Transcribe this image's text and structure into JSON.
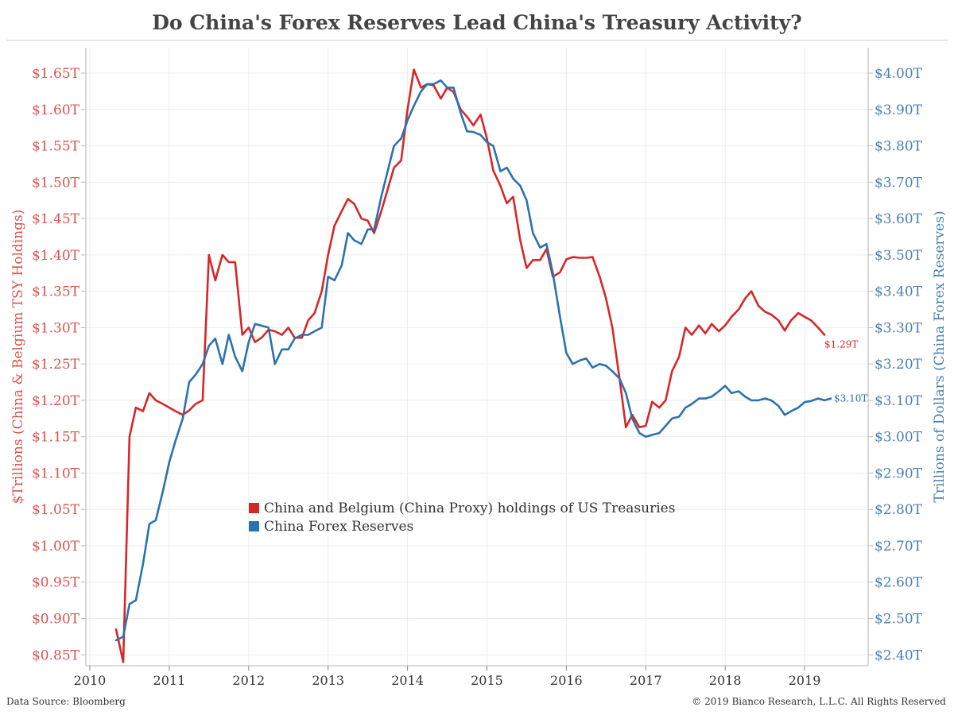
{
  "title": "Do China's Forex Reserves Lead China's Treasury Activity?",
  "footer": {
    "source": "Data Source: Bloomberg",
    "copyright": "© 2019 Bianco Research, L.L.C. All Rights Reserved"
  },
  "colors": {
    "left_series": "#d62728",
    "right_series": "#2c72ad",
    "left_axis_text": "#d9534f",
    "right_axis_text": "#4a7fb0",
    "grid": "#ececec"
  },
  "chart_data": {
    "type": "line",
    "title": "Do China's Forex Reserves Lead China's Treasury Activity?",
    "grid": true,
    "legend_position": "center-left",
    "x_axis": {
      "ticks": [
        "2010",
        "2011",
        "2012",
        "2013",
        "2014",
        "2015",
        "2016",
        "2017",
        "2018",
        "2019"
      ],
      "range": [
        2009.95,
        2019.8
      ]
    },
    "y_left": {
      "label": "$Trillions (China & Belgium TSY Holdings)",
      "range": [
        0.835,
        1.685
      ],
      "ticks": [
        0.85,
        0.9,
        0.95,
        1.0,
        1.05,
        1.1,
        1.15,
        1.2,
        1.25,
        1.3,
        1.35,
        1.4,
        1.45,
        1.5,
        1.55,
        1.6,
        1.65
      ],
      "tick_labels": [
        "$0.85T",
        "$0.90T",
        "$0.95T",
        "$1.00T",
        "$1.05T",
        "$1.10T",
        "$1.15T",
        "$1.20T",
        "$1.25T",
        "$1.30T",
        "$1.35T",
        "$1.40T",
        "$1.45T",
        "$1.50T",
        "$1.55T",
        "$1.60T",
        "$1.65T"
      ]
    },
    "y_right": {
      "label": "Trillions of Dollars (China Forex Reserves)",
      "range": [
        2.37,
        4.07
      ],
      "ticks": [
        2.4,
        2.5,
        2.6,
        2.7,
        2.8,
        2.9,
        3.0,
        3.1,
        3.2,
        3.3,
        3.4,
        3.5,
        3.6,
        3.7,
        3.8,
        3.9,
        4.0
      ],
      "tick_labels": [
        "$2.40T",
        "$2.50T",
        "$2.60T",
        "$2.70T",
        "$2.80T",
        "$2.90T",
        "$3.00T",
        "$3.10T",
        "$3.20T",
        "$3.30T",
        "$3.40T",
        "$3.50T",
        "$3.60T",
        "$3.70T",
        "$3.80T",
        "$3.90T",
        "$4.00T"
      ]
    },
    "series": [
      {
        "name": "China and Belgium (China Proxy) holdings of US Treasuries",
        "axis": "left",
        "end_label": "$1.29T",
        "x": [
          2010.33,
          2010.42,
          2010.5,
          2010.58,
          2010.67,
          2010.75,
          2010.83,
          2010.92,
          2011.0,
          2011.08,
          2011.17,
          2011.25,
          2011.33,
          2011.42,
          2011.5,
          2011.58,
          2011.67,
          2011.75,
          2011.83,
          2011.92,
          2012.0,
          2012.08,
          2012.17,
          2012.25,
          2012.33,
          2012.42,
          2012.5,
          2012.58,
          2012.67,
          2012.75,
          2012.83,
          2012.92,
          2013.0,
          2013.08,
          2013.17,
          2013.25,
          2013.33,
          2013.42,
          2013.5,
          2013.58,
          2013.67,
          2013.75,
          2013.83,
          2013.92,
          2014.0,
          2014.08,
          2014.17,
          2014.25,
          2014.33,
          2014.42,
          2014.5,
          2014.58,
          2014.67,
          2014.75,
          2014.83,
          2014.92,
          2015.0,
          2015.08,
          2015.17,
          2015.25,
          2015.33,
          2015.42,
          2015.5,
          2015.58,
          2015.67,
          2015.75,
          2015.83,
          2015.92,
          2016.0,
          2016.08,
          2016.17,
          2016.25,
          2016.33,
          2016.42,
          2016.5,
          2016.58,
          2016.67,
          2016.75,
          2016.83,
          2016.92,
          2017.0,
          2017.08,
          2017.17,
          2017.25,
          2017.33,
          2017.42,
          2017.5,
          2017.58,
          2017.67,
          2017.75,
          2017.83,
          2017.92,
          2018.0,
          2018.08,
          2018.17,
          2018.25,
          2018.33,
          2018.42,
          2018.5,
          2018.58,
          2018.67,
          2018.75,
          2018.83,
          2018.92,
          2019.0,
          2019.08,
          2019.17,
          2019.25
        ],
        "values": [
          0.885,
          0.84,
          1.15,
          1.19,
          1.185,
          1.21,
          1.2,
          1.195,
          1.19,
          1.185,
          1.18,
          1.186,
          1.195,
          1.2,
          1.4,
          1.365,
          1.4,
          1.39,
          1.39,
          1.29,
          1.3,
          1.28,
          1.287,
          1.297,
          1.295,
          1.29,
          1.3,
          1.286,
          1.286,
          1.31,
          1.32,
          1.35,
          1.4,
          1.44,
          1.46,
          1.477,
          1.47,
          1.45,
          1.447,
          1.43,
          1.46,
          1.49,
          1.52,
          1.53,
          1.6,
          1.655,
          1.63,
          1.635,
          1.633,
          1.615,
          1.63,
          1.624,
          1.6,
          1.59,
          1.578,
          1.593,
          1.56,
          1.516,
          1.495,
          1.471,
          1.48,
          1.42,
          1.382,
          1.393,
          1.393,
          1.408,
          1.37,
          1.376,
          1.394,
          1.397,
          1.396,
          1.396,
          1.397,
          1.37,
          1.34,
          1.3,
          1.23,
          1.163,
          1.18,
          1.163,
          1.165,
          1.198,
          1.19,
          1.2,
          1.24,
          1.26,
          1.3,
          1.29,
          1.303,
          1.292,
          1.305,
          1.295,
          1.303,
          1.315,
          1.325,
          1.34,
          1.35,
          1.33,
          1.322,
          1.318,
          1.31,
          1.296,
          1.31,
          1.32,
          1.315,
          1.31,
          1.3,
          1.29
        ]
      },
      {
        "name": "China Forex Reserves",
        "axis": "right",
        "end_label": "$3.10T",
        "x": [
          2010.33,
          2010.42,
          2010.5,
          2010.58,
          2010.67,
          2010.75,
          2010.83,
          2010.92,
          2011.0,
          2011.08,
          2011.17,
          2011.25,
          2011.33,
          2011.42,
          2011.5,
          2011.58,
          2011.67,
          2011.75,
          2011.83,
          2011.92,
          2012.0,
          2012.08,
          2012.17,
          2012.25,
          2012.33,
          2012.42,
          2012.5,
          2012.58,
          2012.67,
          2012.75,
          2012.83,
          2012.92,
          2013.0,
          2013.08,
          2013.17,
          2013.25,
          2013.33,
          2013.42,
          2013.5,
          2013.58,
          2013.67,
          2013.75,
          2013.83,
          2013.92,
          2014.0,
          2014.08,
          2014.17,
          2014.25,
          2014.33,
          2014.42,
          2014.5,
          2014.58,
          2014.67,
          2014.75,
          2014.83,
          2014.92,
          2015.0,
          2015.08,
          2015.17,
          2015.25,
          2015.33,
          2015.42,
          2015.5,
          2015.58,
          2015.67,
          2015.75,
          2015.83,
          2015.92,
          2016.0,
          2016.08,
          2016.17,
          2016.25,
          2016.33,
          2016.42,
          2016.5,
          2016.58,
          2016.67,
          2016.75,
          2016.83,
          2016.92,
          2017.0,
          2017.08,
          2017.17,
          2017.25,
          2017.33,
          2017.42,
          2017.5,
          2017.58,
          2017.67,
          2017.75,
          2017.83,
          2017.92,
          2018.0,
          2018.08,
          2018.17,
          2018.25,
          2018.33,
          2018.42,
          2018.5,
          2018.58,
          2018.67,
          2018.75,
          2018.83,
          2018.92,
          2019.0,
          2019.08,
          2019.17,
          2019.25,
          2019.33
        ],
        "values": [
          2.44,
          2.45,
          2.54,
          2.55,
          2.65,
          2.76,
          2.77,
          2.85,
          2.93,
          2.99,
          3.05,
          3.15,
          3.17,
          3.2,
          3.25,
          3.27,
          3.2,
          3.28,
          3.22,
          3.18,
          3.26,
          3.31,
          3.305,
          3.3,
          3.2,
          3.24,
          3.24,
          3.27,
          3.28,
          3.28,
          3.29,
          3.3,
          3.44,
          3.43,
          3.47,
          3.56,
          3.54,
          3.53,
          3.57,
          3.57,
          3.66,
          3.73,
          3.8,
          3.82,
          3.87,
          3.91,
          3.95,
          3.97,
          3.97,
          3.98,
          3.96,
          3.96,
          3.89,
          3.84,
          3.838,
          3.83,
          3.81,
          3.8,
          3.73,
          3.74,
          3.71,
          3.69,
          3.65,
          3.56,
          3.52,
          3.53,
          3.45,
          3.33,
          3.23,
          3.2,
          3.21,
          3.215,
          3.19,
          3.2,
          3.195,
          3.18,
          3.16,
          3.12,
          3.05,
          3.01,
          3.0,
          3.005,
          3.01,
          3.03,
          3.05,
          3.055,
          3.08,
          3.09,
          3.105,
          3.105,
          3.11,
          3.125,
          3.14,
          3.12,
          3.125,
          3.11,
          3.1,
          3.1,
          3.105,
          3.1,
          3.085,
          3.06,
          3.07,
          3.08,
          3.095,
          3.098,
          3.105,
          3.1,
          3.105
        ]
      }
    ]
  }
}
